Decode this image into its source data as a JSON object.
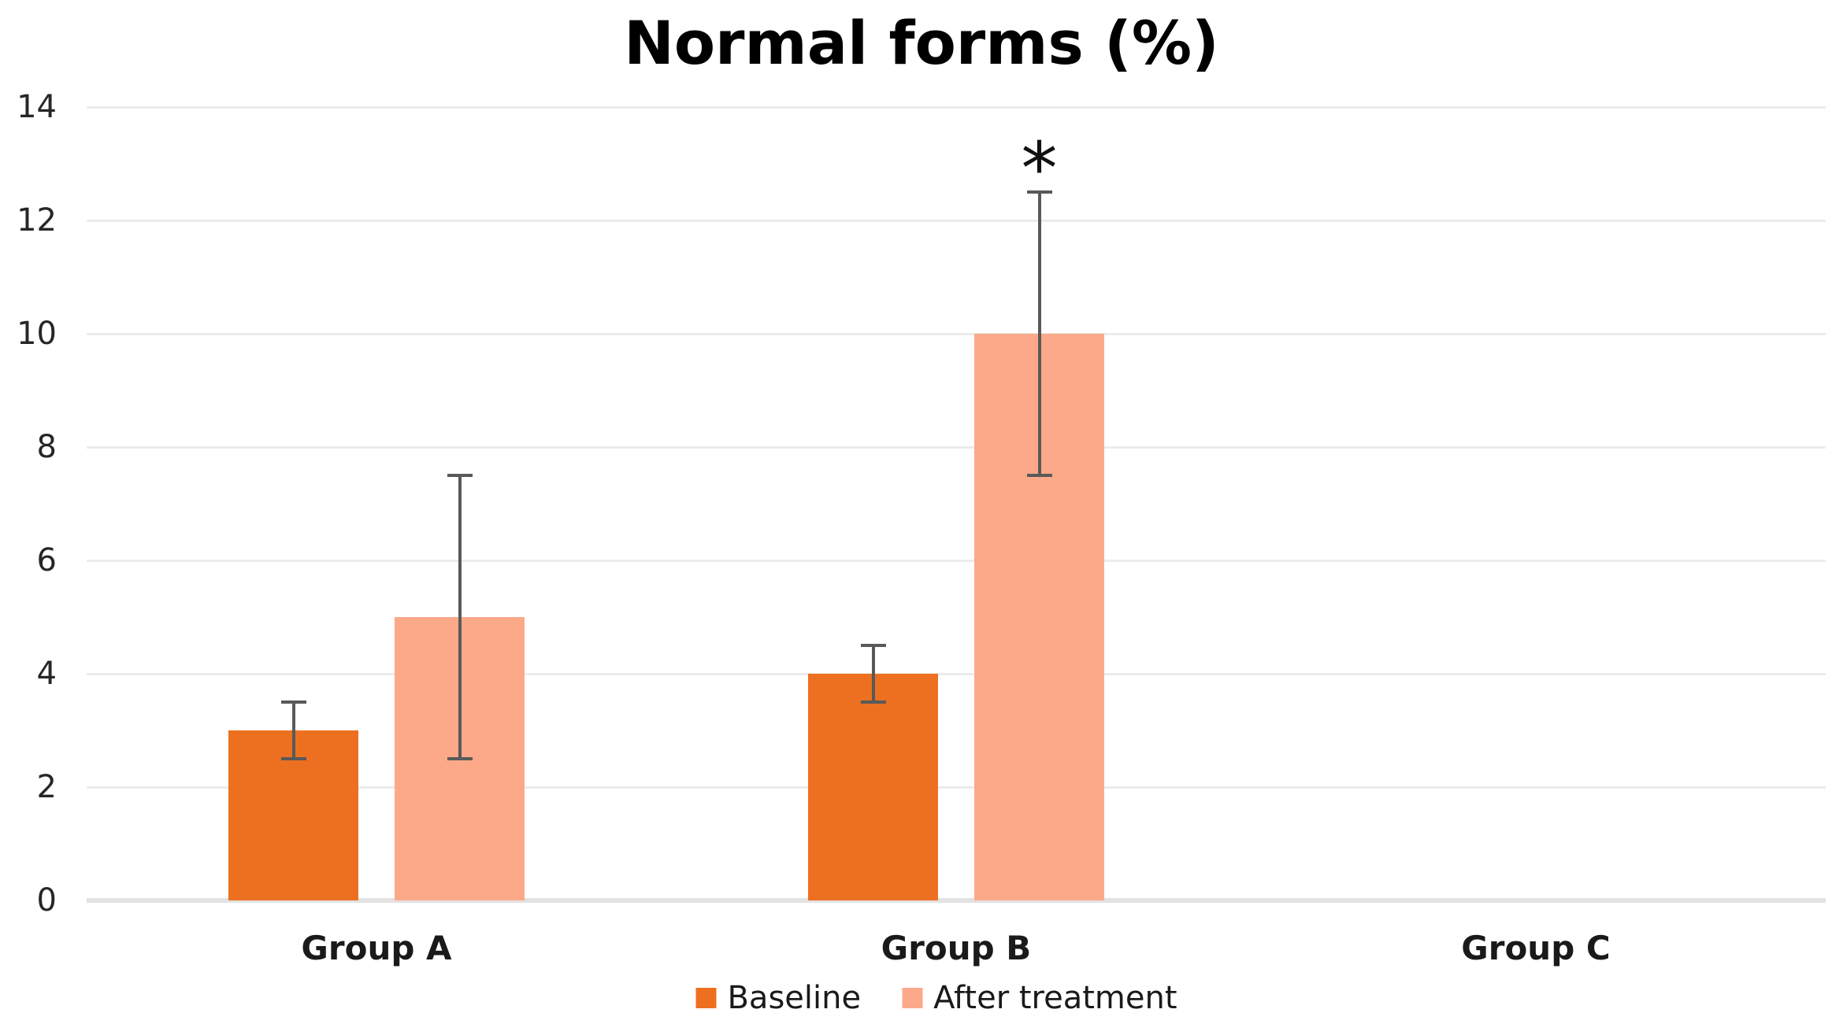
{
  "title": "Normal forms (%)",
  "colors": {
    "baseline": "#ED7020",
    "after_treatment": "#FCA98A",
    "gridline": "#ececec",
    "axis_line": "#e2e2e2",
    "error_bar": "#595959",
    "tick_text": "#262626",
    "label_text": "#1a1a1a",
    "title_text": "#000000"
  },
  "chart_data": {
    "type": "bar",
    "title": "Normal forms (%)",
    "categories": [
      "Group A",
      "Group B",
      "Group C"
    ],
    "series": [
      {
        "name": "Baseline",
        "color": "#ED7020",
        "values": [
          3,
          4,
          0
        ],
        "error_bars": [
          {
            "low": 2.5,
            "high": 3.5
          },
          {
            "low": 3.5,
            "high": 4.5
          },
          null
        ]
      },
      {
        "name": "After treatment",
        "color": "#FCA98A",
        "values": [
          5,
          10,
          0
        ],
        "error_bars": [
          {
            "low": 2.5,
            "high": 7.5
          },
          {
            "low": 7.5,
            "high": 12.5
          },
          null
        ]
      }
    ],
    "annotations": [
      {
        "text": "*",
        "category": "Group B",
        "series": "After treatment",
        "y": 13.2
      }
    ],
    "xlabel": "",
    "ylabel": "",
    "ylim": [
      0,
      14
    ],
    "y_ticks": [
      0,
      2,
      4,
      6,
      8,
      10,
      12,
      14
    ],
    "grid": true,
    "legend_position": "bottom",
    "error_bar_color": "#595959"
  }
}
